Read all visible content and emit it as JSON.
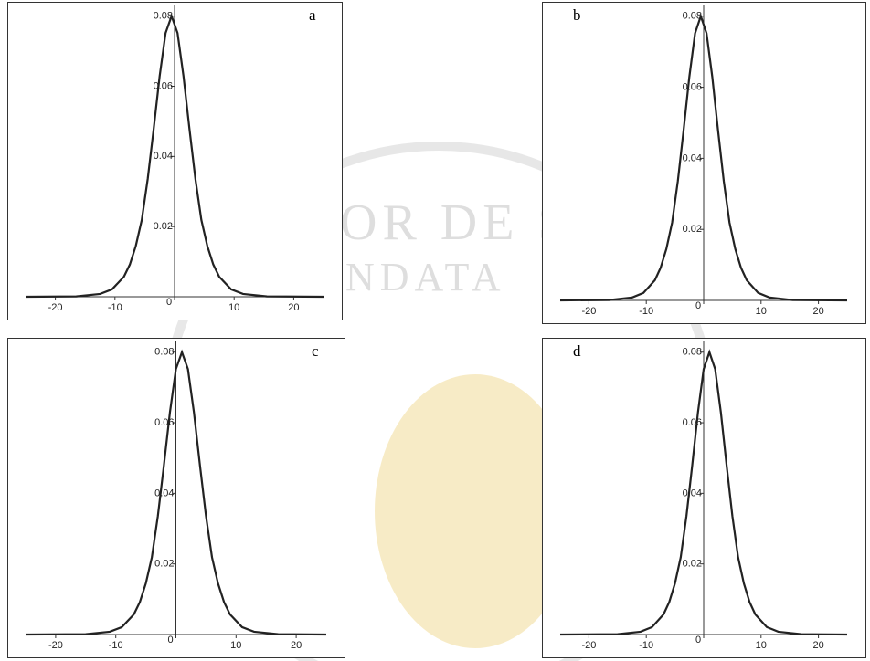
{
  "watermark": [
    "OR DE S",
    "NDATA"
  ],
  "chart_data": [
    {
      "type": "line",
      "label": "a",
      "x": [
        -25,
        -16.5,
        -12.5,
        -10.5,
        -8.5,
        -7.5,
        -6.5,
        -5.5,
        -4.5,
        -3.5,
        -2.5,
        -1.5,
        -0.5,
        0.5,
        1.5,
        2.5,
        3.5,
        4.5,
        5.5,
        6.5,
        7.5,
        9.5,
        11.5,
        15.5,
        25
      ],
      "values": [
        0,
        0.0001,
        0.0008,
        0.0021,
        0.0057,
        0.0092,
        0.0145,
        0.0219,
        0.0336,
        0.0479,
        0.0629,
        0.0752,
        0.08,
        0.0752,
        0.0629,
        0.0479,
        0.0336,
        0.0219,
        0.0145,
        0.0092,
        0.0057,
        0.0021,
        0.0008,
        0.0001,
        0
      ],
      "color": "#222222",
      "xlim": [
        -25,
        25
      ],
      "ylim": [
        0,
        0.082
      ],
      "xticks": [
        -20,
        -10,
        0,
        10,
        20
      ],
      "yticks": [
        0,
        0.02,
        0.04,
        0.06,
        0.08
      ]
    },
    {
      "type": "line",
      "label": "b",
      "x": [
        -25,
        -16.5,
        -12.5,
        -10.5,
        -8.5,
        -7.5,
        -6.5,
        -5.5,
        -4.5,
        -3.5,
        -2.5,
        -1.5,
        -0.5,
        0.5,
        1.5,
        2.5,
        3.5,
        4.5,
        5.5,
        6.5,
        7.5,
        9.5,
        11.5,
        15.5,
        25
      ],
      "values": [
        0,
        0.0001,
        0.0008,
        0.0021,
        0.0057,
        0.0092,
        0.0145,
        0.0219,
        0.0336,
        0.0479,
        0.0629,
        0.0752,
        0.08,
        0.0752,
        0.0629,
        0.0479,
        0.0336,
        0.0219,
        0.0145,
        0.0092,
        0.0057,
        0.0021,
        0.0008,
        0.0001,
        0
      ],
      "color": "#222222",
      "xlim": [
        -25,
        25
      ],
      "ylim": [
        0,
        0.082
      ],
      "xticks": [
        -20,
        -10,
        0,
        10,
        20
      ],
      "yticks": [
        0,
        0.02,
        0.04,
        0.06,
        0.08
      ]
    },
    {
      "type": "line",
      "label": "c",
      "x": [
        -25,
        -15,
        -11,
        -9,
        -7,
        -6,
        -5,
        -4,
        -3,
        -2,
        -1,
        0,
        1,
        2,
        3,
        4,
        5,
        6,
        7,
        8,
        9,
        11,
        13,
        17,
        25
      ],
      "values": [
        0,
        0.0001,
        0.0008,
        0.0021,
        0.0057,
        0.0092,
        0.0145,
        0.0219,
        0.0336,
        0.0479,
        0.0629,
        0.0752,
        0.08,
        0.0752,
        0.0629,
        0.0479,
        0.0336,
        0.0219,
        0.0145,
        0.0092,
        0.0057,
        0.0021,
        0.0008,
        0.0001,
        0
      ],
      "color": "#222222",
      "xlim": [
        -25,
        25
      ],
      "ylim": [
        0,
        0.082
      ],
      "xticks": [
        -20,
        -10,
        0,
        10,
        20
      ],
      "yticks": [
        0,
        0.02,
        0.04,
        0.06,
        0.08
      ]
    },
    {
      "type": "line",
      "label": "d",
      "x": [
        -25,
        -15,
        -11,
        -9,
        -7,
        -6,
        -5,
        -4,
        -3,
        -2,
        -1,
        0,
        1,
        2,
        3,
        4,
        5,
        6,
        7,
        8,
        9,
        11,
        13,
        17,
        25
      ],
      "values": [
        0,
        0.0001,
        0.0008,
        0.0021,
        0.0057,
        0.0092,
        0.0145,
        0.0219,
        0.0336,
        0.0479,
        0.0629,
        0.0752,
        0.08,
        0.0752,
        0.0629,
        0.0479,
        0.0336,
        0.0219,
        0.0145,
        0.0092,
        0.0057,
        0.0021,
        0.0008,
        0.0001,
        0
      ],
      "color": "#222222",
      "xlim": [
        -25,
        25
      ],
      "ylim": [
        0,
        0.082
      ],
      "xticks": [
        -20,
        -10,
        0,
        10,
        20
      ],
      "yticks": [
        0,
        0.02,
        0.04,
        0.06,
        0.08
      ]
    }
  ]
}
